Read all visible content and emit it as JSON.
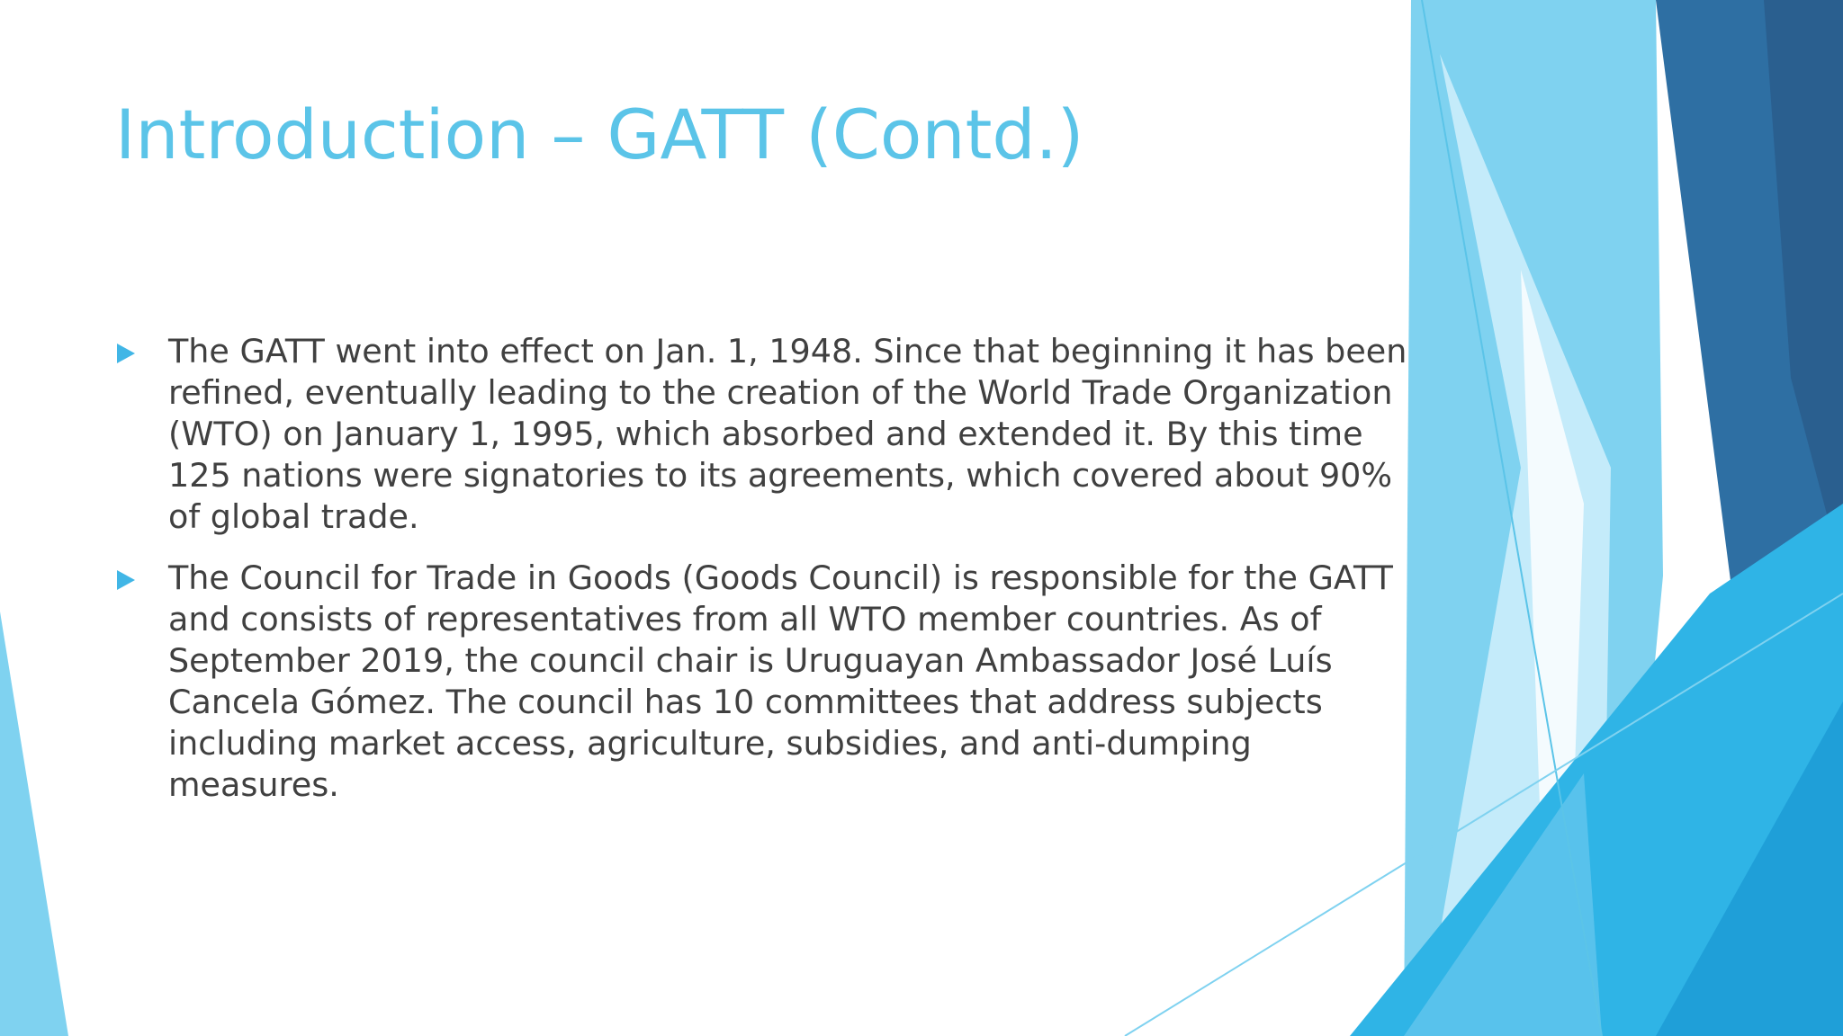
{
  "slide": {
    "title": "Introduction – GATT (Contd.)",
    "bullet_icon": "triangle-right-icon",
    "bullets": [
      {
        "text": "The GATT went into effect on Jan. 1, 1948. Since that beginning it has been refined, eventually leading to the creation of the World Trade Organization (WTO) on January 1, 1995, which absorbed and extended it. By this time 125 nations were signatories to its agreements, which covered about 90% of global trade."
      },
      {
        "text": "The Council for Trade in Goods (Goods Council) is responsible for the GATT and consists of representatives from all WTO member countries. As of September 2019, the council chair is Uruguayan Ambassador José Luís Cancela Gómez. The council has 10 committees that address subjects including market access, agriculture, subsidies, and anti-dumping measures."
      }
    ]
  },
  "theme": {
    "title_color": "#5bc4e8",
    "text_color": "#404040",
    "accent_light": "#7fd2f0",
    "accent_mid": "#2fb4e6",
    "accent_dark": "#2a6496"
  }
}
